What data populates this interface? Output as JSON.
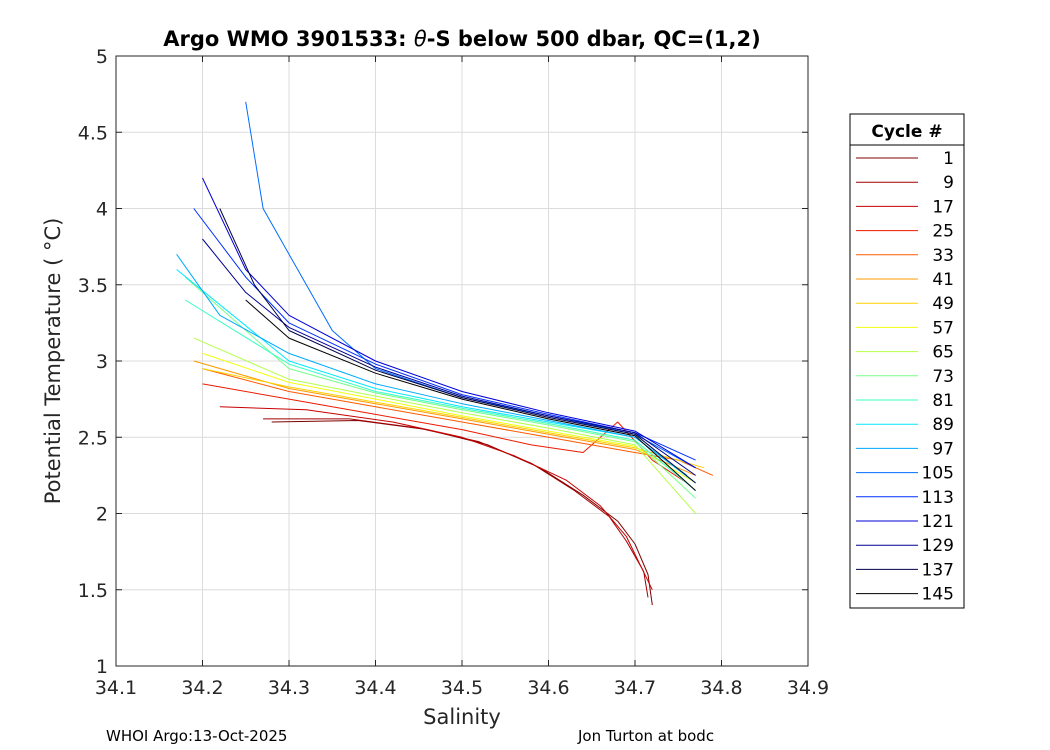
{
  "chart_data": {
    "type": "line",
    "title_prefix": "Argo WMO 3901533: ",
    "title_theta": "θ",
    "title_suffix": "-S below 500 dbar,  QC=(1,2)",
    "xlabel": "Salinity",
    "ylabel": "Potential Temperature ( °C)",
    "xlim": [
      34.1,
      34.9
    ],
    "ylim": [
      1,
      5
    ],
    "xticks": [
      "34.1",
      "34.2",
      "34.3",
      "34.4",
      "34.5",
      "34.6",
      "34.7",
      "34.8",
      "34.9"
    ],
    "yticks": [
      "1",
      "1.5",
      "2",
      "2.5",
      "3",
      "3.5",
      "4",
      "4.5",
      "5"
    ],
    "grid": true,
    "legend": {
      "title": "Cycle #",
      "placement": "outside-right",
      "entries": [
        {
          "label": "1",
          "color": "#800000"
        },
        {
          "label": "9",
          "color": "#a30000"
        },
        {
          "label": "17",
          "color": "#c80000"
        },
        {
          "label": "25",
          "color": "#ee1a00"
        },
        {
          "label": "33",
          "color": "#ff5a00"
        },
        {
          "label": "41",
          "color": "#ff9a00"
        },
        {
          "label": "49",
          "color": "#ffd000"
        },
        {
          "label": "57",
          "color": "#f2ff0d"
        },
        {
          "label": "65",
          "color": "#b4ff4a"
        },
        {
          "label": "73",
          "color": "#76ff88"
        },
        {
          "label": "81",
          "color": "#3affc4"
        },
        {
          "label": "89",
          "color": "#00e8ff"
        },
        {
          "label": "97",
          "color": "#00aaff"
        },
        {
          "label": "105",
          "color": "#006cff"
        },
        {
          "label": "113",
          "color": "#002eff"
        },
        {
          "label": "121",
          "color": "#0000d8"
        },
        {
          "label": "129",
          "color": "#000090"
        },
        {
          "label": "137",
          "color": "#00004a"
        },
        {
          "label": "145",
          "color": "#000000"
        }
      ]
    },
    "series": [
      {
        "name": "1",
        "color": "#800000",
        "x": [
          34.28,
          34.38,
          34.46,
          34.53,
          34.59,
          34.64,
          34.68,
          34.7,
          34.715,
          34.72
        ],
        "y": [
          2.6,
          2.61,
          2.55,
          2.45,
          2.3,
          2.12,
          1.95,
          1.8,
          1.6,
          1.4
        ]
      },
      {
        "name": "9",
        "color": "#a30000",
        "x": [
          34.27,
          34.37,
          34.45,
          34.52,
          34.58,
          34.63,
          34.67,
          34.69,
          34.71,
          34.715
        ],
        "y": [
          2.62,
          2.62,
          2.56,
          2.47,
          2.33,
          2.15,
          1.98,
          1.82,
          1.62,
          1.45
        ]
      },
      {
        "name": "17",
        "color": "#c80000",
        "x": [
          34.22,
          34.32,
          34.42,
          34.5,
          34.56,
          34.62,
          34.66,
          34.69,
          34.72
        ],
        "y": [
          2.7,
          2.68,
          2.6,
          2.5,
          2.38,
          2.22,
          2.05,
          1.85,
          1.5
        ]
      },
      {
        "name": "25",
        "color": "#ee1a00",
        "x": [
          34.2,
          34.3,
          34.4,
          34.5,
          34.58,
          34.64,
          34.68,
          34.72,
          34.76
        ],
        "y": [
          2.85,
          2.75,
          2.65,
          2.55,
          2.45,
          2.4,
          2.6,
          2.35,
          2.2
        ]
      },
      {
        "name": "33",
        "color": "#ff5a00",
        "x": [
          34.2,
          34.3,
          34.4,
          34.5,
          34.6,
          34.68,
          34.75,
          34.79
        ],
        "y": [
          2.95,
          2.8,
          2.7,
          2.6,
          2.5,
          2.42,
          2.35,
          2.25
        ]
      },
      {
        "name": "41",
        "color": "#ff9a00",
        "x": [
          34.19,
          34.3,
          34.4,
          34.5,
          34.6,
          34.7,
          34.77
        ],
        "y": [
          3.0,
          2.82,
          2.72,
          2.62,
          2.52,
          2.42,
          2.25
        ]
      },
      {
        "name": "49",
        "color": "#ffd000",
        "x": [
          34.2,
          34.3,
          34.4,
          34.5,
          34.6,
          34.7,
          34.78
        ],
        "y": [
          2.95,
          2.83,
          2.73,
          2.63,
          2.53,
          2.43,
          2.3
        ]
      },
      {
        "name": "57",
        "color": "#f2ff0d",
        "x": [
          34.2,
          34.3,
          34.4,
          34.5,
          34.6,
          34.7,
          34.77
        ],
        "y": [
          3.05,
          2.86,
          2.75,
          2.64,
          2.54,
          2.44,
          2.2
        ]
      },
      {
        "name": "65",
        "color": "#b4ff4a",
        "x": [
          34.19,
          34.3,
          34.4,
          34.5,
          34.6,
          34.7,
          34.77
        ],
        "y": [
          3.15,
          2.88,
          2.77,
          2.66,
          2.56,
          2.45,
          2.0
        ]
      },
      {
        "name": "73",
        "color": "#76ff88",
        "x": [
          34.18,
          34.3,
          34.4,
          34.5,
          34.6,
          34.7,
          34.77
        ],
        "y": [
          3.55,
          2.95,
          2.79,
          2.68,
          2.58,
          2.47,
          2.1
        ]
      },
      {
        "name": "81",
        "color": "#3affc4",
        "x": [
          34.18,
          34.3,
          34.4,
          34.5,
          34.6,
          34.7,
          34.77
        ],
        "y": [
          3.4,
          2.98,
          2.8,
          2.69,
          2.59,
          2.48,
          2.15
        ]
      },
      {
        "name": "89",
        "color": "#00e8ff",
        "x": [
          34.17,
          34.3,
          34.4,
          34.5,
          34.6,
          34.7,
          34.77
        ],
        "y": [
          3.6,
          3.0,
          2.82,
          2.7,
          2.6,
          2.5,
          2.2
        ]
      },
      {
        "name": "97",
        "color": "#00aaff",
        "x": [
          34.17,
          34.22,
          34.3,
          34.4,
          34.5,
          34.6,
          34.7,
          34.76
        ],
        "y": [
          3.7,
          3.3,
          3.05,
          2.85,
          2.72,
          2.61,
          2.5,
          2.25
        ]
      },
      {
        "name": "105",
        "color": "#006cff",
        "x": [
          34.25,
          34.27,
          34.3,
          34.35,
          34.4,
          34.5,
          34.6,
          34.7,
          34.77
        ],
        "y": [
          4.7,
          4.0,
          3.7,
          3.2,
          2.95,
          2.76,
          2.64,
          2.52,
          2.3
        ]
      },
      {
        "name": "113",
        "color": "#002eff",
        "x": [
          34.19,
          34.25,
          34.3,
          34.4,
          34.5,
          34.6,
          34.7,
          34.77
        ],
        "y": [
          4.0,
          3.55,
          3.25,
          2.98,
          2.78,
          2.65,
          2.53,
          2.35
        ]
      },
      {
        "name": "121",
        "color": "#0000d8",
        "x": [
          34.2,
          34.25,
          34.3,
          34.4,
          34.5,
          34.6,
          34.7,
          34.77
        ],
        "y": [
          4.2,
          3.6,
          3.3,
          3.0,
          2.8,
          2.66,
          2.54,
          2.3
        ]
      },
      {
        "name": "129",
        "color": "#000090",
        "x": [
          34.2,
          34.25,
          34.3,
          34.4,
          34.5,
          34.6,
          34.7,
          34.77
        ],
        "y": [
          3.8,
          3.45,
          3.22,
          2.96,
          2.77,
          2.64,
          2.53,
          2.25
        ]
      },
      {
        "name": "137",
        "color": "#00004a",
        "x": [
          34.22,
          34.26,
          34.3,
          34.4,
          34.5,
          34.6,
          34.7,
          34.77
        ],
        "y": [
          4.0,
          3.5,
          3.2,
          2.94,
          2.76,
          2.63,
          2.52,
          2.2
        ]
      },
      {
        "name": "145",
        "color": "#000000",
        "x": [
          34.25,
          34.3,
          34.4,
          34.5,
          34.6,
          34.7,
          34.77
        ],
        "y": [
          3.4,
          3.15,
          2.92,
          2.75,
          2.62,
          2.51,
          2.15
        ]
      }
    ]
  },
  "footer": {
    "left": "WHOI Argo:13-Oct-2025",
    "right": "Jon Turton at bodc"
  }
}
